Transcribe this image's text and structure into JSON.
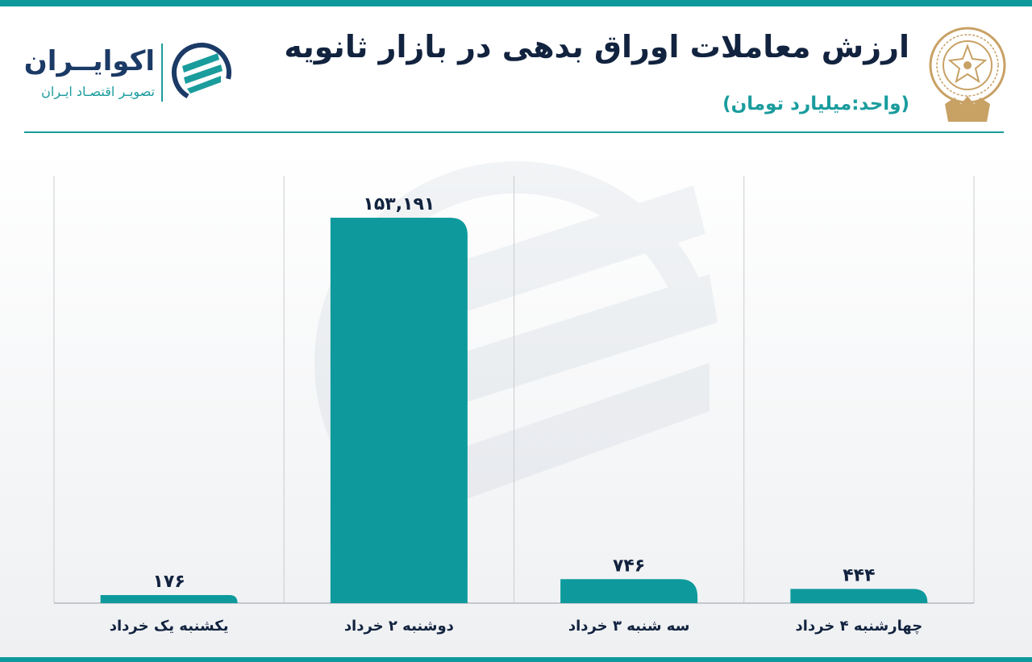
{
  "header": {
    "title": "ارزش معاملات اوراق بدهی در بازار ثانویه",
    "subtitle": "(واحد:میلیارد تومان)"
  },
  "brand": {
    "name": "اکوایــران",
    "tagline": "تصویـر اقتصـاد ایـران"
  },
  "colors": {
    "accent": "#0e9a9c",
    "title": "#12233f",
    "brand_gold": "#c8a165"
  },
  "icons": [
    "ecoiran-logo-icon",
    "stock-exchange-seal-icon"
  ],
  "chart_data": {
    "type": "bar",
    "categories": [
      "یکشنبه یک خرداد",
      "دوشنبه ۲ خرداد",
      "سه شنبه ۳ خرداد",
      "چهارشنبه ۴ خرداد"
    ],
    "values": [
      176,
      153191,
      746,
      444
    ],
    "data_labels": [
      "۱۷۶",
      "۱۵۳,۱۹۱",
      "۷۴۶",
      "۴۴۴"
    ],
    "display_heights": [
      176,
      12000,
      746,
      444
    ],
    "grid": "vertical separators",
    "legend": "none",
    "note": "bars are not drawn to a linear scale in the original"
  }
}
